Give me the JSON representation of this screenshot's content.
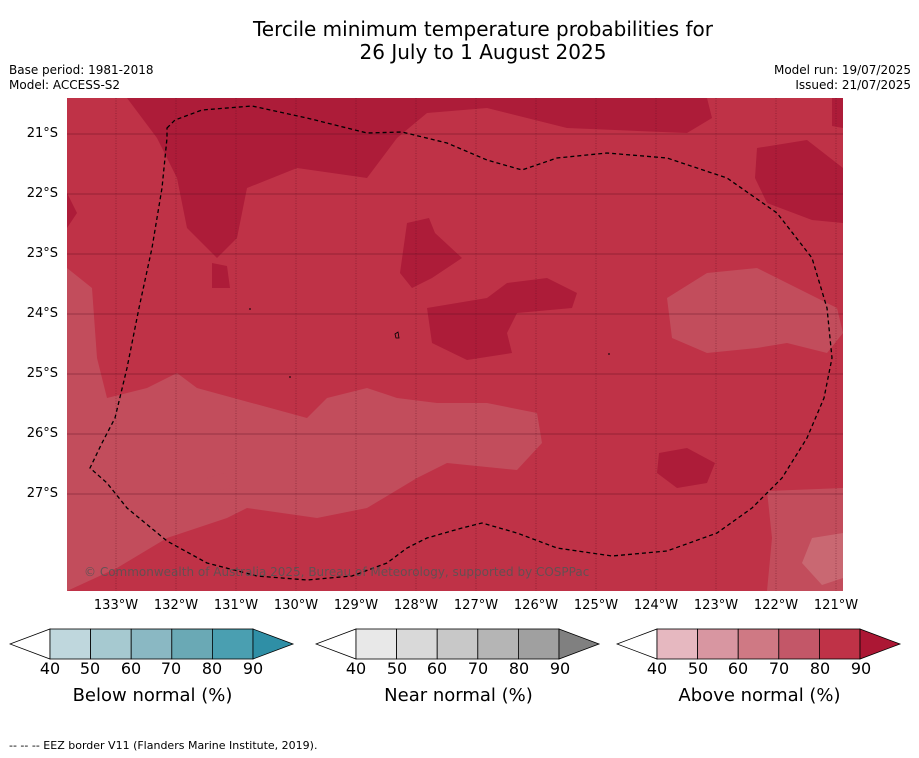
{
  "title_line1": "Tercile minimum temperature probabilities for",
  "title_line2": "26 July to 1 August 2025",
  "base_period": "Base period: 1981-2018",
  "model": "Model: ACCESS-S2",
  "model_run": "Model run: 19/07/2025",
  "issued": "Issued: 21/07/2025",
  "copyright": "© Commonwealth of Australia 2025, Bureau of Meteorology, supported by COSPPac",
  "latitudes": [
    "21°S",
    "22°S",
    "23°S",
    "24°S",
    "25°S",
    "26°S",
    "27°S"
  ],
  "longitudes": [
    "133°W",
    "132°W",
    "131°W",
    "130°W",
    "129°W",
    "128°W",
    "127°W",
    "126°W",
    "125°W",
    "124°W",
    "123°W",
    "122°W",
    "121°W"
  ],
  "colorbars": [
    {
      "title": "Below normal (%)",
      "ticks": [
        "40",
        "50",
        "60",
        "70",
        "80",
        "90"
      ],
      "colors": [
        "#ffffff",
        "#bfd7dd",
        "#a6c9d0",
        "#8ab8c3",
        "#6aa9b5",
        "#4a9fb1",
        "#2f8fa6"
      ]
    },
    {
      "title": "Near normal (%)",
      "ticks": [
        "40",
        "50",
        "60",
        "70",
        "80",
        "90"
      ],
      "colors": [
        "#ffffff",
        "#e8e8e8",
        "#d9d9d9",
        "#c8c8c8",
        "#b5b5b5",
        "#a0a0a0",
        "#808080"
      ]
    },
    {
      "title": "Above normal (%)",
      "ticks": [
        "40",
        "50",
        "60",
        "70",
        "80",
        "90"
      ],
      "colors": [
        "#ffffff",
        "#e6b8c0",
        "#d896a1",
        "#cf7984",
        "#c35768",
        "#bf3247",
        "#ac1734"
      ]
    }
  ],
  "footnote": "--  --  -- EEZ border V11 (Flanders Marine Institute, 2019).",
  "field_colors": {
    "p70_80": "#bf3247",
    "p60_70": "#c24d5c",
    "p80_90": "#ad1c39"
  }
}
